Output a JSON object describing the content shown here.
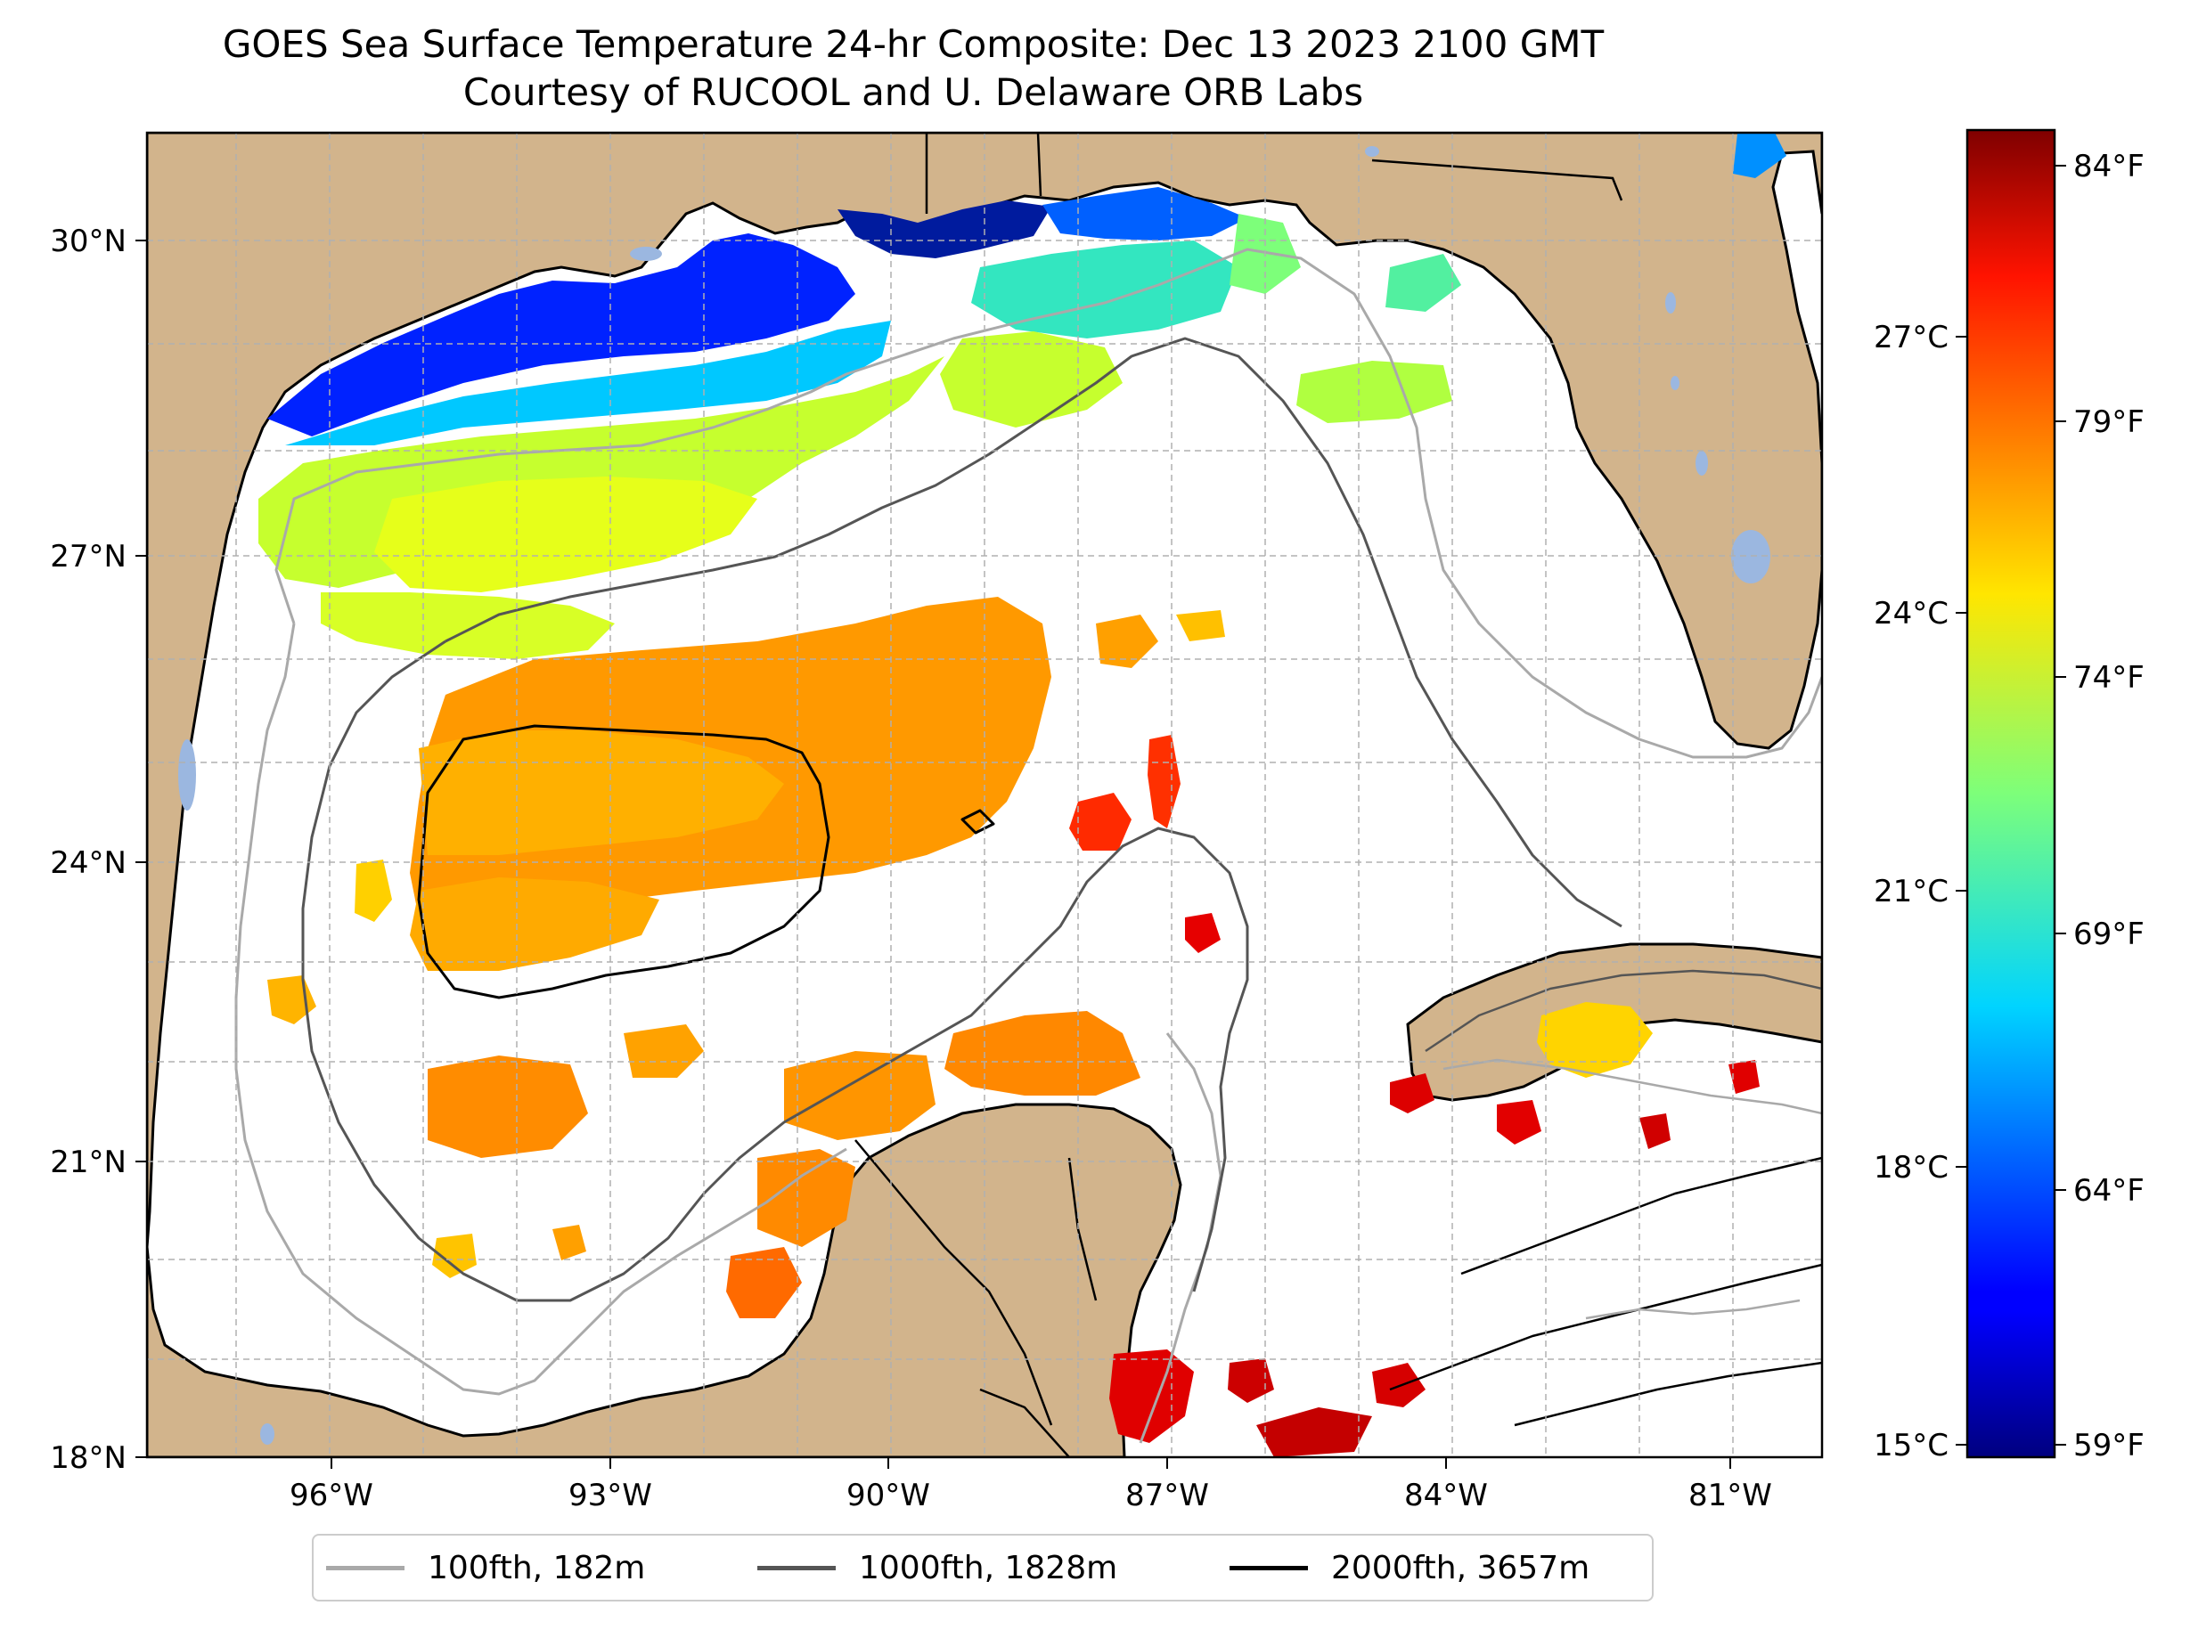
{
  "title": {
    "line1": "GOES Sea Surface Temperature 24-hr Composite: Dec 13 2023 2100 GMT",
    "line2": "Courtesy of RUCOOL and U. Delaware ORB Labs"
  },
  "colors": {
    "land": "#d2b48c",
    "water": "#ffffff",
    "lakes": "#9bb7e0",
    "grid": "#b0b0b0"
  },
  "map": {
    "lat_labels": [
      "30°N",
      "27°N",
      "24°N",
      "21°N",
      "18°N"
    ],
    "lon_labels": [
      "96°W",
      "93°W",
      "90°W",
      "87°W",
      "84°W",
      "81°W"
    ]
  },
  "colorbar": {
    "celsius_labels": [
      "27°C",
      "24°C",
      "21°C",
      "18°C",
      "15°C"
    ],
    "fahrenheit_labels": [
      "84°F",
      "79°F",
      "74°F",
      "69°F",
      "64°F",
      "59°F"
    ],
    "colormap": "jet"
  },
  "legend": {
    "items": [
      {
        "label": "100fth, 182m",
        "color": "#a9a9a9"
      },
      {
        "label": "1000fth, 1828m",
        "color": "#555555"
      },
      {
        "label": "2000fth, 3657m",
        "color": "#000000"
      }
    ]
  }
}
